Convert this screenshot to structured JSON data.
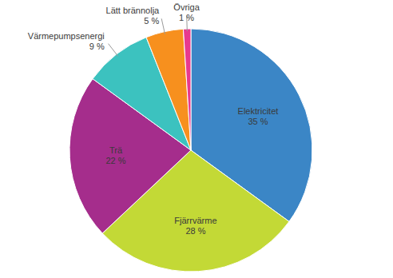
{
  "chart_data": {
    "type": "pie",
    "categories": [
      "Elektricitet",
      "Fjärrvärme",
      "Trä",
      "Värmepumpsenergi",
      "Lätt brännolja",
      "Övriga"
    ],
    "values": [
      35,
      28,
      22,
      9,
      5,
      1
    ],
    "value_labels": [
      "35 %",
      "28 %",
      "22 %",
      "9 %",
      "5 %",
      "1 %"
    ],
    "colors": [
      "#3b86c6",
      "#c3d936",
      "#a52d8c",
      "#3cc2bf",
      "#f7901e",
      "#e8398e"
    ],
    "data_labels": true
  }
}
